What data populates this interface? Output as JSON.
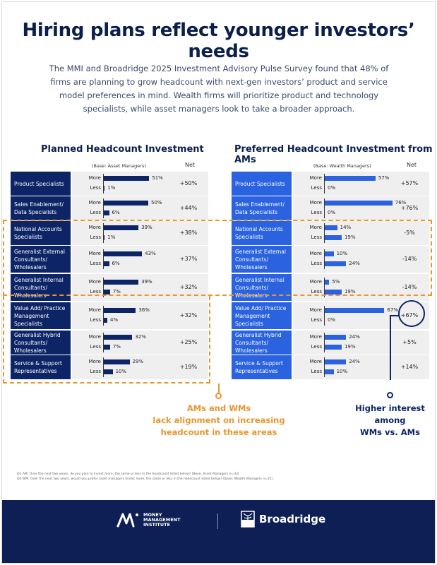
{
  "header": {
    "title": "Hiring plans reflect younger investors’ needs",
    "intro": "The MMI and Broadridge 2025 Investment Advisory Pulse Survey found that 48% of firms are planning to grow headcount with next-gen investors’ product and service model preferences in mind. Wealth firms will prioritize product and technology specialists, while asset managers look to take a broader approach."
  },
  "left_panel": {
    "title": "Planned Headcount Investment",
    "base": "(Base: Asset Managers)",
    "net_header": "Net"
  },
  "right_panel": {
    "title": "Preferred Headcount Investment from AMs",
    "base": "(Base: Wealth Managers)",
    "net_header": "Net"
  },
  "labels": {
    "more": "More",
    "less": "Less"
  },
  "callouts": {
    "orange": "AMs and WMs lack alignment on increasing headcount in these areas",
    "orange_lines": [
      "AMs and WMs",
      "lack alignment on increasing",
      "headcount in these areas"
    ],
    "navy_lines": [
      "Higher interest",
      "among",
      "WMs vs. AMs"
    ]
  },
  "footnotes": {
    "q1": "Q1 AM: Over the next two years, do you plan to invest more, the same or less in the headcount listed below? (Base: Asset Managers n=33)",
    "q2": "Q3 WM: Over the next two years, would you prefer asset managers invest more, the same or less in the headcount listed below? (Base: Wealth Managers n=21)"
  },
  "footer": {
    "mmi_lines": [
      "MONEY",
      "MANAGEMENT",
      "INSTITUTE"
    ],
    "broadridge": "Broadridge"
  },
  "colors": {
    "am_navy": "#0d2566",
    "wm_blue": "#2a62e0",
    "orange": "#e8962e",
    "footer_bg": "#0d1f55"
  },
  "chart_data": [
    {
      "type": "bar",
      "title": "Planned Headcount Investment",
      "subtitle": "(Base: Asset Managers)",
      "categories": [
        "Product Specialists",
        "Sales Enablement/ Data Specialists",
        "National Accounts Specialists",
        "Generalist External Consultants/ Wholesalers",
        "Generalist Internal Consultants/ Wholesalers",
        "Value Add/ Practice Management Specialists",
        "Generalist Hybrid Consultants/ Wholesalers",
        "Service & Support Representatives"
      ],
      "series": [
        {
          "name": "More",
          "values": [
            51,
            50,
            39,
            43,
            39,
            36,
            32,
            29
          ]
        },
        {
          "name": "Less",
          "values": [
            1,
            6,
            1,
            6,
            7,
            4,
            7,
            10
          ]
        },
        {
          "name": "Net",
          "values": [
            50,
            44,
            38,
            37,
            32,
            32,
            25,
            19
          ]
        }
      ],
      "xlabel": "",
      "ylabel": "%"
    },
    {
      "type": "bar",
      "title": "Preferred Headcount Investment from AMs",
      "subtitle": "(Base: Wealth Managers)",
      "categories": [
        "Product Specialists",
        "Sales Enablement/ Data Specialists",
        "National Accounts Specialists",
        "Generalist External Consultants/ Wholesalers",
        "Generalist Internal Consultants/ Wholesalers",
        "Value Add/ Practice Management Specialists",
        "Generalist Hybrid Consultants/ Wholesalers",
        "Service & Support Representatives"
      ],
      "series": [
        {
          "name": "More",
          "values": [
            57,
            76,
            14,
            10,
            5,
            67,
            24,
            24
          ]
        },
        {
          "name": "Less",
          "values": [
            0,
            0,
            19,
            24,
            19,
            0,
            19,
            10
          ]
        },
        {
          "name": "Net",
          "values": [
            57,
            76,
            -5,
            -14,
            -14,
            67,
            5,
            14
          ]
        }
      ],
      "xlabel": "",
      "ylabel": "%"
    }
  ],
  "rows_left": [
    {
      "cat": "Product Specialists",
      "more": "51%",
      "less": "1%",
      "net": "+50%"
    },
    {
      "cat": "Sales Enablement/ Data Specialists",
      "more": "50%",
      "less": "6%",
      "net": "+44%"
    },
    {
      "cat": "National Accounts Specialists",
      "more": "39%",
      "less": "1%",
      "net": "+38%"
    },
    {
      "cat": "Generalist External Consultants/ Wholesalers",
      "more": "43%",
      "less": "6%",
      "net": "+37%"
    },
    {
      "cat": "Generalist Internal Consultants/ Wholesalers",
      "more": "39%",
      "less": "7%",
      "net": "+32%"
    },
    {
      "cat": "Value Add/ Practice Management Specialists",
      "more": "36%",
      "less": "4%",
      "net": "+32%"
    },
    {
      "cat": "Generalist Hybrid Consultants/ Wholesalers",
      "more": "32%",
      "less": "7%",
      "net": "+25%"
    },
    {
      "cat": "Service & Support Representatives",
      "more": "29%",
      "less": "10%",
      "net": "+19%"
    }
  ],
  "rows_right": [
    {
      "cat": "Product Specialists",
      "more": "57%",
      "less": "0%",
      "net": "+57%"
    },
    {
      "cat": "Sales Enablement/ Data Specialists",
      "more": "76%",
      "less": "0%",
      "net": "+76%"
    },
    {
      "cat": "National Accounts Specialists",
      "more": "14%",
      "less": "19%",
      "net": "-5%"
    },
    {
      "cat": "Generalist External Consultants/ Wholesalers",
      "more": "10%",
      "less": "24%",
      "net": "-14%"
    },
    {
      "cat": "Generalist Internal Consultants/ Wholesalers",
      "more": "5%",
      "less": "19%",
      "net": "-14%"
    },
    {
      "cat": "Value Add/ Practice Management Specialists",
      "more": "67%",
      "less": "0%",
      "net": "+67%"
    },
    {
      "cat": "Generalist Hybrid Consultants/ Wholesalers",
      "more": "24%",
      "less": "19%",
      "net": "+5%"
    },
    {
      "cat": "Service & Support Representatives",
      "more": "24%",
      "less": "10%",
      "net": "+14%"
    }
  ]
}
